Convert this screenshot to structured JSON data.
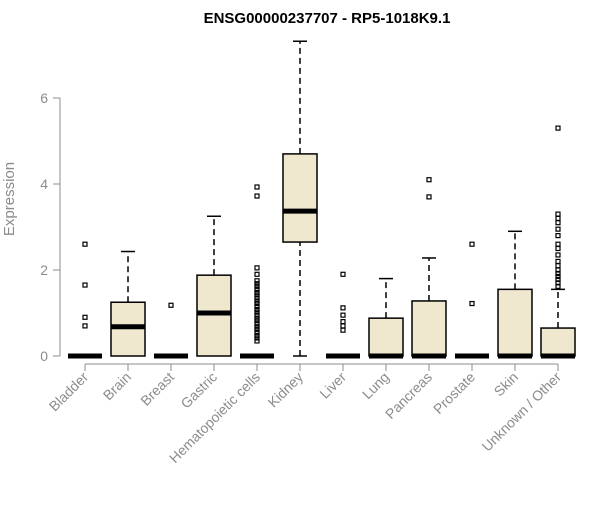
{
  "chart_data": {
    "type": "box",
    "title": "ENSG00000237707 - RP5-1018K9.1",
    "xlabel": "",
    "ylabel": "Expression",
    "ylim": [
      0,
      7.4
    ],
    "yticks": [
      0,
      2,
      4,
      6
    ],
    "grid": false,
    "legend": "none",
    "colors": {
      "box_fill": "#efe8cf",
      "stroke": "#000000",
      "axis": "#8c8c8c"
    },
    "categories": [
      "Bladder",
      "Brain",
      "Breast",
      "Gastric",
      "Hematopoietic cells",
      "Kidney",
      "Liver",
      "Lung",
      "Pancreas",
      "Prostate",
      "Skin",
      "Unknown / Other"
    ],
    "boxes": [
      {
        "category": "Bladder",
        "min": 0,
        "q1": 0,
        "median": 0,
        "q3": 0,
        "max": 0,
        "outliers": [
          0.7,
          0.9,
          1.65,
          2.6
        ]
      },
      {
        "category": "Brain",
        "min": 0,
        "q1": 0,
        "median": 0.68,
        "q3": 1.25,
        "max": 2.43,
        "outliers": []
      },
      {
        "category": "Breast",
        "min": 0,
        "q1": 0,
        "median": 0,
        "q3": 0,
        "max": 0,
        "outliers": [
          1.18
        ]
      },
      {
        "category": "Gastric",
        "min": 0,
        "q1": 0,
        "median": 1.0,
        "q3": 1.88,
        "max": 3.25,
        "outliers": []
      },
      {
        "category": "Hematopoietic cells",
        "min": 0,
        "q1": 0,
        "median": 0,
        "q3": 0,
        "max": 0,
        "outliers": [
          0.35,
          0.42,
          0.48,
          0.55,
          0.62,
          0.68,
          0.75,
          0.82,
          0.88,
          0.95,
          1.02,
          1.08,
          1.15,
          1.22,
          1.28,
          1.35,
          1.42,
          1.48,
          1.55,
          1.62,
          1.68,
          1.75,
          1.9,
          2.05,
          3.72,
          3.93
        ]
      },
      {
        "category": "Kidney",
        "min": 0,
        "q1": 2.65,
        "median": 3.37,
        "q3": 4.7,
        "max": 7.32,
        "outliers": []
      },
      {
        "category": "Liver",
        "min": 0,
        "q1": 0,
        "median": 0,
        "q3": 0,
        "max": 0,
        "outliers": [
          0.6,
          0.7,
          0.8,
          0.95,
          1.12,
          1.9
        ]
      },
      {
        "category": "Lung",
        "min": 0,
        "q1": 0,
        "median": 0,
        "q3": 0.88,
        "max": 1.8,
        "outliers": []
      },
      {
        "category": "Pancreas",
        "min": 0,
        "q1": 0,
        "median": 0,
        "q3": 1.28,
        "max": 2.28,
        "outliers": [
          3.7,
          4.1
        ]
      },
      {
        "category": "Prostate",
        "min": 0,
        "q1": 0,
        "median": 0,
        "q3": 0,
        "max": 0,
        "outliers": [
          1.22,
          2.6
        ]
      },
      {
        "category": "Skin",
        "min": 0,
        "q1": 0,
        "median": 0,
        "q3": 1.55,
        "max": 2.9,
        "outliers": []
      },
      {
        "category": "Unknown / Other",
        "min": 0,
        "q1": 0,
        "median": 0,
        "q3": 0.65,
        "max": 1.55,
        "outliers": [
          1.62,
          1.7,
          1.78,
          1.85,
          1.92,
          2.0,
          2.1,
          2.2,
          2.35,
          2.5,
          2.6,
          2.8,
          2.95,
          3.1,
          3.2,
          3.3,
          5.3
        ]
      }
    ]
  }
}
